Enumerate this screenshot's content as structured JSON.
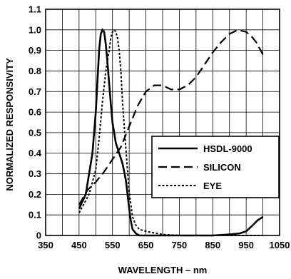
{
  "chart_data": {
    "type": "line",
    "title": "",
    "xlabel": "WAVELENGTH – nm",
    "ylabel": "NORMALIZED RESPONSIVITY",
    "xlim": [
      350,
      1050
    ],
    "ylim": [
      0,
      1.1
    ],
    "grid": true,
    "legend": "center-right",
    "x_ticks": [
      "350",
      "450",
      "550",
      "650",
      "750",
      "850",
      "950",
      "1050"
    ],
    "y_ticks": [
      "0",
      "0.1",
      "0.2",
      "0.3",
      "0.4",
      "0.5",
      "0.6",
      "0.7",
      "0.8",
      "0.9",
      "1.0",
      "1.1"
    ],
    "series": [
      {
        "name": "HSDL-9000",
        "style": "solid",
        "x": [
          450,
          470,
          490,
          500,
          505,
          510,
          515,
          520,
          525,
          530,
          535,
          540,
          545,
          550,
          560,
          570,
          580,
          590,
          600,
          605,
          610,
          620,
          630,
          650,
          700,
          750,
          800,
          850,
          900,
          930,
          950,
          970,
          985,
          1000
        ],
        "y": [
          0.13,
          0.2,
          0.4,
          0.6,
          0.75,
          0.9,
          0.98,
          1.0,
          0.99,
          0.93,
          0.84,
          0.74,
          0.64,
          0.55,
          0.45,
          0.4,
          0.35,
          0.27,
          0.13,
          0.07,
          0.03,
          0.01,
          0.0,
          0.0,
          0.0,
          0.0,
          0.0,
          0.0,
          0.005,
          0.01,
          0.02,
          0.05,
          0.075,
          0.09
        ]
      },
      {
        "name": "SILICON",
        "style": "dashed",
        "x": [
          450,
          475,
          500,
          525,
          550,
          575,
          600,
          625,
          650,
          675,
          700,
          725,
          750,
          775,
          800,
          825,
          850,
          875,
          900,
          925,
          950,
          965,
          980,
          990,
          1000
        ],
        "y": [
          0.15,
          0.22,
          0.26,
          0.31,
          0.37,
          0.43,
          0.53,
          0.63,
          0.7,
          0.73,
          0.73,
          0.71,
          0.71,
          0.73,
          0.77,
          0.83,
          0.89,
          0.94,
          0.98,
          1.0,
          0.99,
          0.97,
          0.94,
          0.91,
          0.88
        ]
      },
      {
        "name": "EYE",
        "style": "dotted",
        "x": [
          450,
          480,
          500,
          510,
          520,
          530,
          540,
          545,
          550,
          555,
          560,
          565,
          570,
          575,
          580,
          590,
          600,
          610,
          620,
          630,
          650,
          700,
          750,
          800,
          900,
          1000
        ],
        "y": [
          0.11,
          0.2,
          0.32,
          0.47,
          0.65,
          0.8,
          0.9,
          0.96,
          0.99,
          1.0,
          0.99,
          0.96,
          0.9,
          0.8,
          0.65,
          0.42,
          0.21,
          0.09,
          0.05,
          0.03,
          0.02,
          0.005,
          0.0,
          0.0,
          0.0,
          0.0
        ]
      }
    ]
  }
}
